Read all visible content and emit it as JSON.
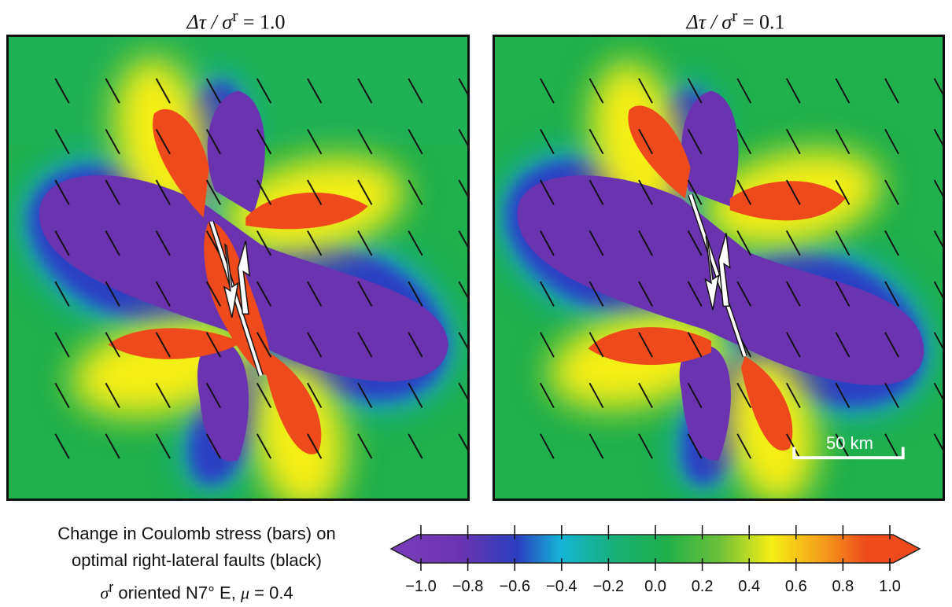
{
  "panels": [
    {
      "title_ratio_lhs": "Δτ / σ",
      "title_sup": "r",
      "title_value": "= 1.0"
    },
    {
      "title_ratio_lhs": "Δτ / σ",
      "title_sup": "r",
      "title_value": "= 0.1"
    }
  ],
  "scalebar": {
    "label": "50 km"
  },
  "caption": {
    "line1": "Change in Coulomb stress (bars) on",
    "line2": "optimal right-lateral faults (black)",
    "line3_sigma": "σ",
    "line3_sup": "r",
    "line3_text": " oriented N7° E,  ",
    "line3_mu": "μ",
    "line3_value": " = 0.4"
  },
  "colorbar": {
    "ticks": [
      "−1.0",
      "−0.8",
      "−0.6",
      "−0.4",
      "−0.2",
      "0.0",
      "0.2",
      "0.4",
      "0.6",
      "0.8",
      "1.0"
    ],
    "colors": {
      "neg": "#6a34b0",
      "blue": "#2a3fc0",
      "cyan": "#15b4d6",
      "green": "#1fb04a",
      "yellow": "#f5ef14",
      "red": "#ee4a1c"
    }
  }
}
